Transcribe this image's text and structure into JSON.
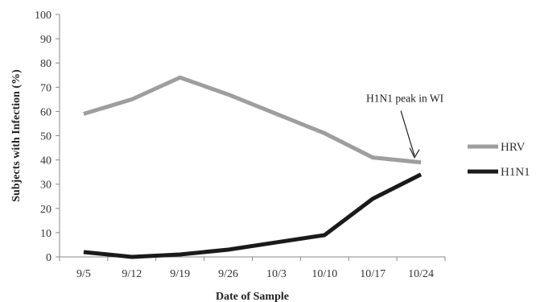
{
  "chart_data": {
    "type": "line",
    "categories": [
      "9/5",
      "9/12",
      "9/19",
      "9/26",
      "10/3",
      "10/10",
      "10/17",
      "10/24"
    ],
    "series": [
      {
        "name": "HRV",
        "values": [
          59,
          65,
          74,
          67,
          59,
          51,
          41,
          39
        ],
        "color": "#9e9e9e"
      },
      {
        "name": "H1N1",
        "values": [
          2,
          0,
          1,
          3,
          6,
          9,
          24,
          34
        ],
        "color": "#1a1a1a"
      }
    ],
    "title": "",
    "xlabel": "Date of Sample",
    "ylabel": "Subjects with Infection (%)",
    "ylim": [
      0,
      100
    ],
    "yticks": [
      0,
      10,
      20,
      30,
      40,
      50,
      60,
      70,
      80,
      90,
      100
    ],
    "grid": false,
    "legend_position": "right",
    "annotations": [
      {
        "text": "H1N1 peak in WI",
        "category": "10/24",
        "y": 39
      }
    ]
  }
}
